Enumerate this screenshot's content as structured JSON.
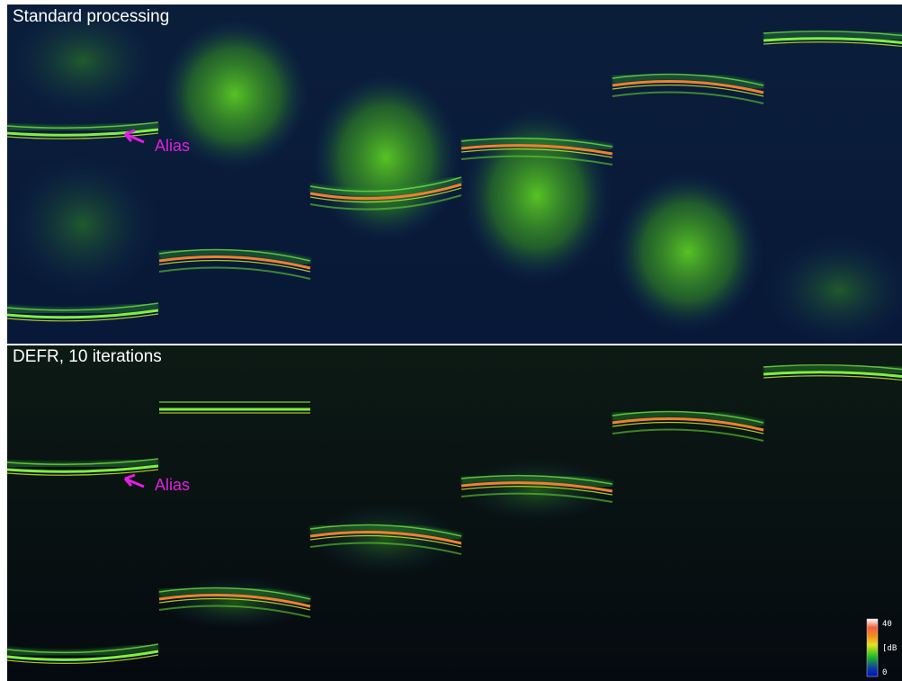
{
  "panels": [
    {
      "title": "Standard processing",
      "annotation": "Alias"
    },
    {
      "title": "DEFR,  10 iterations",
      "annotation": "Alias"
    }
  ],
  "colorbar": {
    "max_label": "40",
    "unit_label": "[dB",
    "min_label": "0"
  }
}
